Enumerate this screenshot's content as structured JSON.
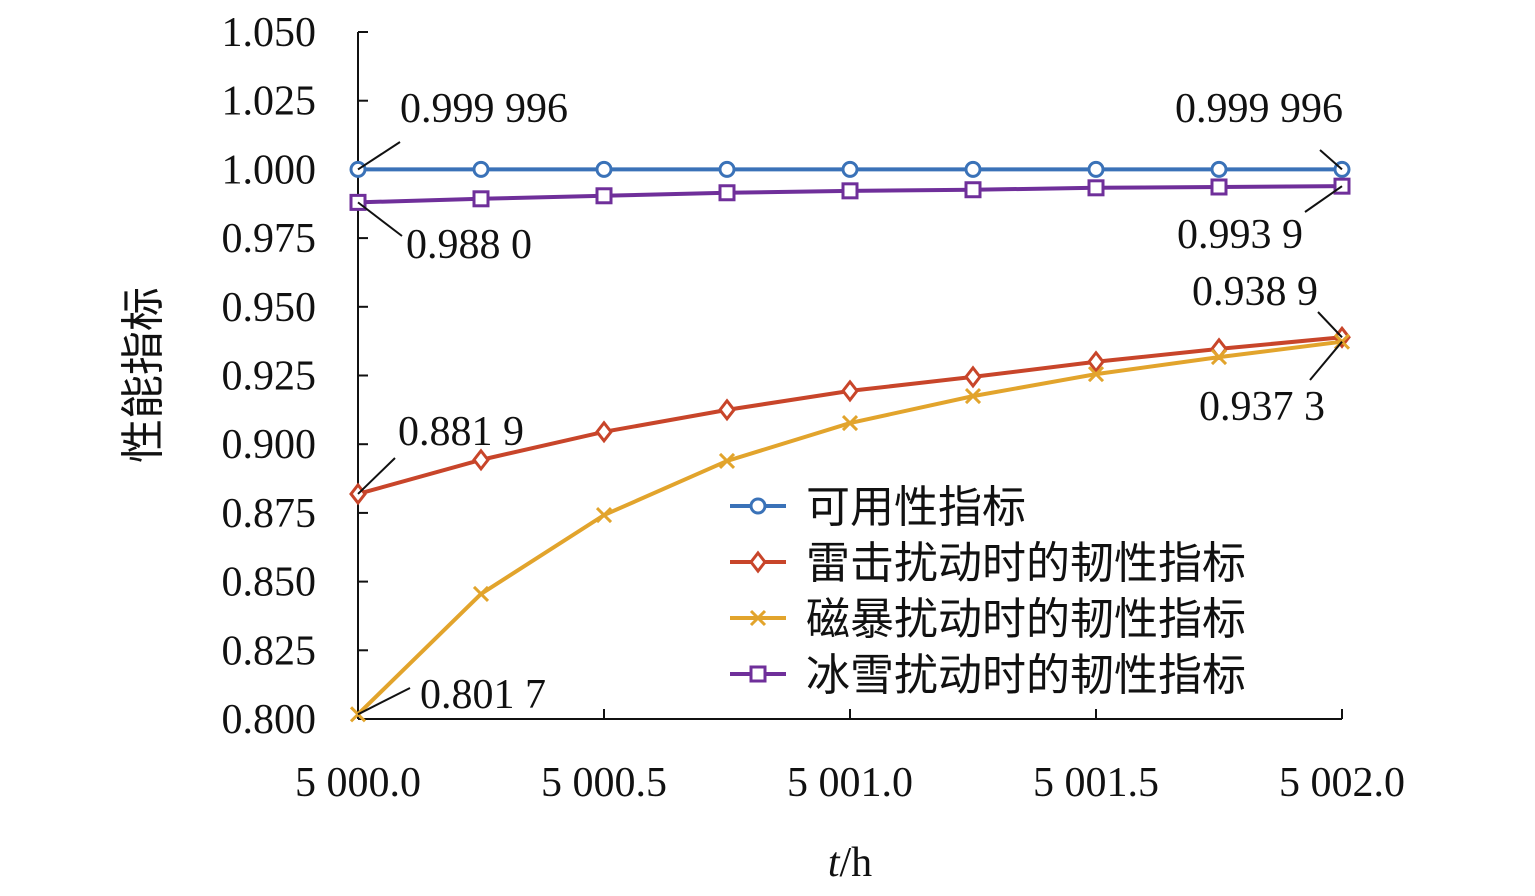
{
  "chart_data": {
    "type": "line",
    "title": "",
    "xlabel_italic": "t",
    "xlabel_unit": "/h",
    "ylabel": "性能指标",
    "xlim": [
      5000.0,
      5002.0
    ],
    "ylim": [
      0.8,
      1.05
    ],
    "x_ticks": [
      5000.0,
      5000.5,
      5001.0,
      5001.5,
      5002.0
    ],
    "x_tick_labels": [
      "5 000.0",
      "5 000.5",
      "5 001.0",
      "5 001.5",
      "5 002.0"
    ],
    "y_ticks": [
      0.8,
      0.825,
      0.85,
      0.875,
      0.9,
      0.925,
      0.95,
      0.975,
      1.0,
      1.025,
      1.05
    ],
    "y_tick_labels": [
      "0.800",
      "0.825",
      "0.850",
      "0.875",
      "0.900",
      "0.925",
      "0.950",
      "0.975",
      "1.000",
      "1.025",
      "1.050"
    ],
    "grid": false,
    "legend_position": "bottom-right",
    "x": [
      5000.0,
      5000.25,
      5000.5,
      5000.75,
      5001.0,
      5001.25,
      5001.5,
      5001.75,
      5002.0
    ],
    "series": [
      {
        "name": "可用性指标",
        "color": "#3a72b8",
        "marker": "circle",
        "values": [
          0.999996,
          0.999996,
          0.999996,
          0.999996,
          0.999996,
          0.999996,
          0.999996,
          0.999996,
          0.999996
        ]
      },
      {
        "name": "雷击扰动时的韧性指标",
        "color": "#c8452a",
        "marker": "diamond",
        "values": [
          0.8819,
          0.8943,
          0.9045,
          0.9125,
          0.9194,
          0.9245,
          0.93,
          0.9347,
          0.9389
        ]
      },
      {
        "name": "磁暴扰动时的韧性指标",
        "color": "#e2a42c",
        "marker": "x",
        "values": [
          0.8017,
          0.8455,
          0.8742,
          0.8939,
          0.9077,
          0.9175,
          0.9255,
          0.9317,
          0.9373
        ]
      },
      {
        "name": "冰雪扰动时的韧性指标",
        "color": "#6f2f9a",
        "marker": "square",
        "values": [
          0.988,
          0.9893,
          0.9904,
          0.9915,
          0.9922,
          0.9926,
          0.9933,
          0.9936,
          0.9939
        ]
      }
    ],
    "annotations": [
      {
        "text": "0.999 996",
        "series": 0,
        "point": 0
      },
      {
        "text": "0.999 996",
        "series": 0,
        "point": 8
      },
      {
        "text": "0.988 0",
        "series": 3,
        "point": 0
      },
      {
        "text": "0.993 9",
        "series": 3,
        "point": 8
      },
      {
        "text": "0.938 9",
        "series": 1,
        "point": 8
      },
      {
        "text": "0.937 3",
        "series": 2,
        "point": 8
      },
      {
        "text": "0.881 9",
        "series": 1,
        "point": 0
      },
      {
        "text": "0.801 7",
        "series": 2,
        "point": 0
      }
    ]
  }
}
